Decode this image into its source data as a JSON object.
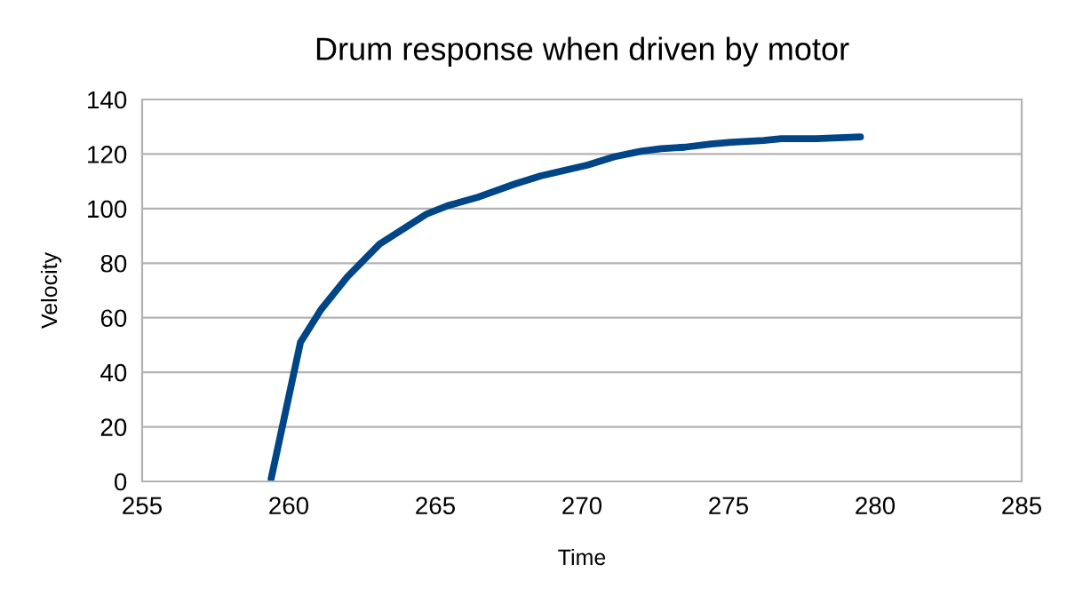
{
  "chart_data": {
    "type": "line",
    "title": "Drum response when driven by motor",
    "xlabel": "Time",
    "ylabel": "Velocity",
    "series": [
      {
        "color": "#004586",
        "x": [
          259.4,
          260.4,
          261.1,
          262.0,
          263.1,
          264.7,
          265.4,
          266.4,
          267.7,
          268.6,
          270.2,
          271.1,
          272.0,
          272.7,
          273.5,
          274.4,
          275.1,
          276.2,
          276.8,
          278.0,
          279.5
        ],
        "values": [
          1,
          51,
          63,
          75,
          87,
          98,
          101,
          104,
          109,
          112,
          116,
          119,
          121,
          122,
          122.5,
          123.7,
          124.3,
          125,
          125.6,
          125.6,
          126.3
        ]
      }
    ],
    "xlim": [
      255,
      285
    ],
    "xticks": [
      255,
      260,
      265,
      270,
      275,
      280,
      285
    ],
    "ylim": [
      0,
      140
    ],
    "yticks": [
      0,
      20,
      40,
      60,
      80,
      100,
      120,
      140
    ],
    "grid": "y",
    "legend": false,
    "marker": "none",
    "line_style": "solid"
  }
}
